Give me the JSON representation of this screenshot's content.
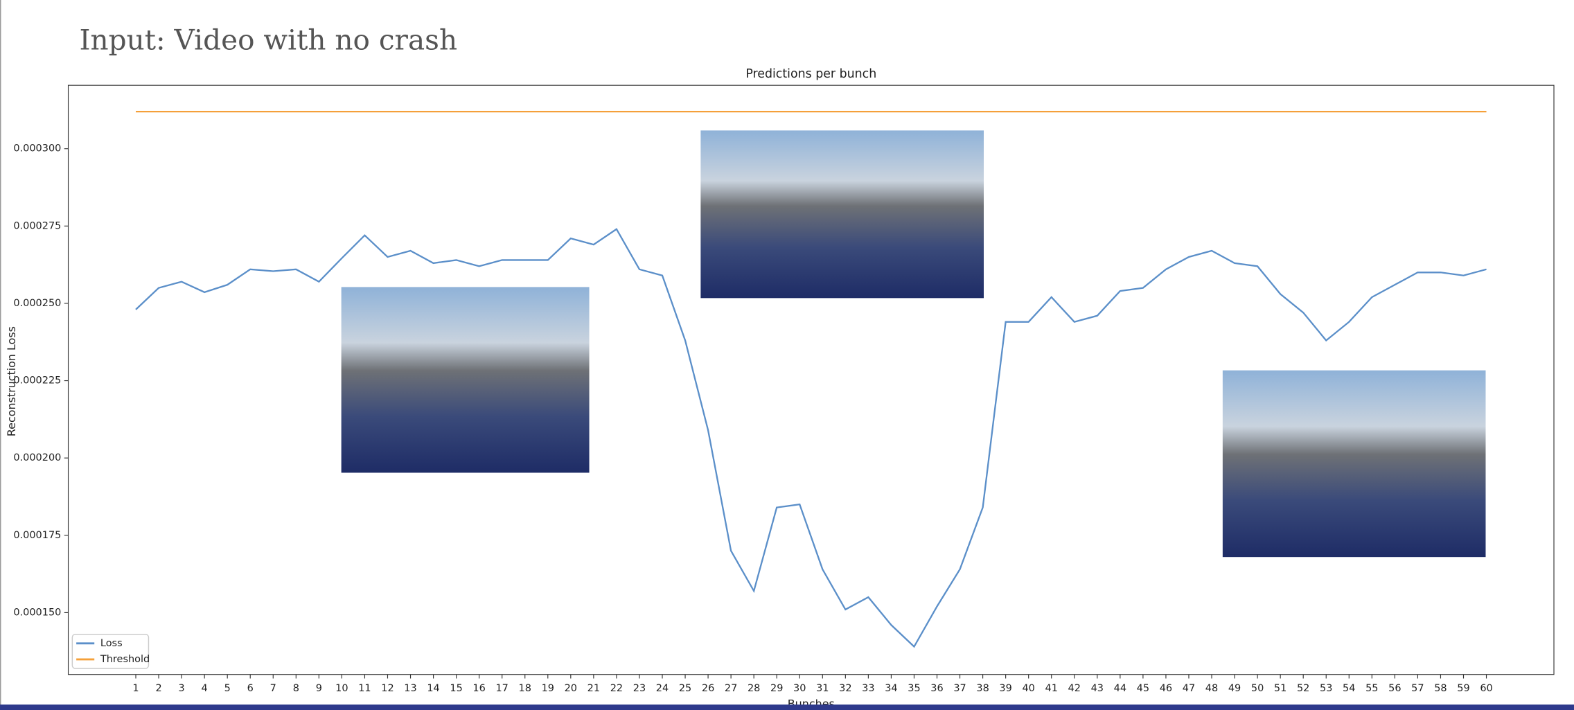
{
  "heading": "Input: Video with no crash",
  "chart_data": {
    "type": "line",
    "title": "Predictions per bunch",
    "x_label": "Bunches",
    "y_label": "Reconstruction Loss",
    "x": [
      1,
      2,
      3,
      4,
      5,
      6,
      7,
      8,
      9,
      10,
      11,
      12,
      13,
      14,
      15,
      16,
      17,
      18,
      19,
      20,
      21,
      22,
      23,
      24,
      25,
      26,
      27,
      28,
      29,
      30,
      31,
      32,
      33,
      34,
      35,
      36,
      37,
      38,
      39,
      40,
      41,
      42,
      43,
      44,
      45,
      46,
      47,
      48,
      49,
      50,
      51,
      52,
      53,
      54,
      55,
      56,
      57,
      58,
      59,
      60
    ],
    "series": [
      {
        "name": "Loss",
        "color": "#5b8fc9",
        "values": [
          0.000248,
          0.000255,
          0.000257,
          0.0002536,
          0.000256,
          0.000261,
          0.0002604,
          0.000261,
          0.000257,
          0.0002646,
          0.000272,
          0.000265,
          0.000267,
          0.000263,
          0.000264,
          0.000262,
          0.000264,
          0.000264,
          0.000264,
          0.000271,
          0.000269,
          0.000274,
          0.000261,
          0.000259,
          0.000238,
          0.000209,
          0.00017,
          0.000157,
          0.000184,
          0.000185,
          0.000164,
          0.000151,
          0.000155,
          0.000146,
          0.000139,
          0.000152,
          0.000164,
          0.000184,
          0.000244,
          0.000244,
          0.000252,
          0.000244,
          0.000246,
          0.000254,
          0.000255,
          0.000261,
          0.000265,
          0.000267,
          0.000263,
          0.000262,
          0.000253,
          0.000247,
          0.000238,
          0.000244,
          0.000252,
          0.000256,
          0.00026,
          0.00026,
          0.000259,
          0.000261
        ]
      },
      {
        "name": "Threshold",
        "color": "#f5a03a",
        "values": [
          0.000312,
          0.000312,
          0.000312,
          0.000312,
          0.000312,
          0.000312,
          0.000312,
          0.000312,
          0.000312,
          0.000312,
          0.000312,
          0.000312,
          0.000312,
          0.000312,
          0.000312,
          0.000312,
          0.000312,
          0.000312,
          0.000312,
          0.000312,
          0.000312,
          0.000312,
          0.000312,
          0.000312,
          0.000312,
          0.000312,
          0.000312,
          0.000312,
          0.000312,
          0.000312,
          0.000312,
          0.000312,
          0.000312,
          0.000312,
          0.000312,
          0.000312,
          0.000312,
          0.000312,
          0.000312,
          0.000312,
          0.000312,
          0.000312,
          0.000312,
          0.000312,
          0.000312,
          0.000312,
          0.000312,
          0.000312,
          0.000312,
          0.000312,
          0.000312,
          0.000312,
          0.000312,
          0.000312,
          0.000312,
          0.000312,
          0.000312,
          0.000312,
          0.000312,
          0.000312
        ]
      }
    ],
    "xlim": [
      -1.95,
      62.95
    ],
    "ylim": [
      0.00013,
      0.0003205
    ],
    "xticks": [
      1,
      2,
      3,
      4,
      5,
      6,
      7,
      8,
      9,
      10,
      11,
      12,
      13,
      14,
      15,
      16,
      17,
      18,
      19,
      20,
      21,
      22,
      23,
      24,
      25,
      26,
      27,
      28,
      29,
      30,
      31,
      32,
      33,
      34,
      35,
      36,
      37,
      38,
      39,
      40,
      41,
      42,
      43,
      44,
      45,
      46,
      47,
      48,
      49,
      50,
      51,
      52,
      53,
      54,
      55,
      56,
      57,
      58,
      59,
      60
    ],
    "yticks": [
      {
        "value": 0.00015,
        "label": "0.000150"
      },
      {
        "value": 0.000175,
        "label": "0.000175"
      },
      {
        "value": 0.0002,
        "label": "0.000200"
      },
      {
        "value": 0.000225,
        "label": "0.000225"
      },
      {
        "value": 0.00025,
        "label": "0.000250"
      },
      {
        "value": 0.000275,
        "label": "0.000275"
      },
      {
        "value": 0.0003,
        "label": "0.000300"
      }
    ],
    "legend": "lower left",
    "grid": false
  }
}
